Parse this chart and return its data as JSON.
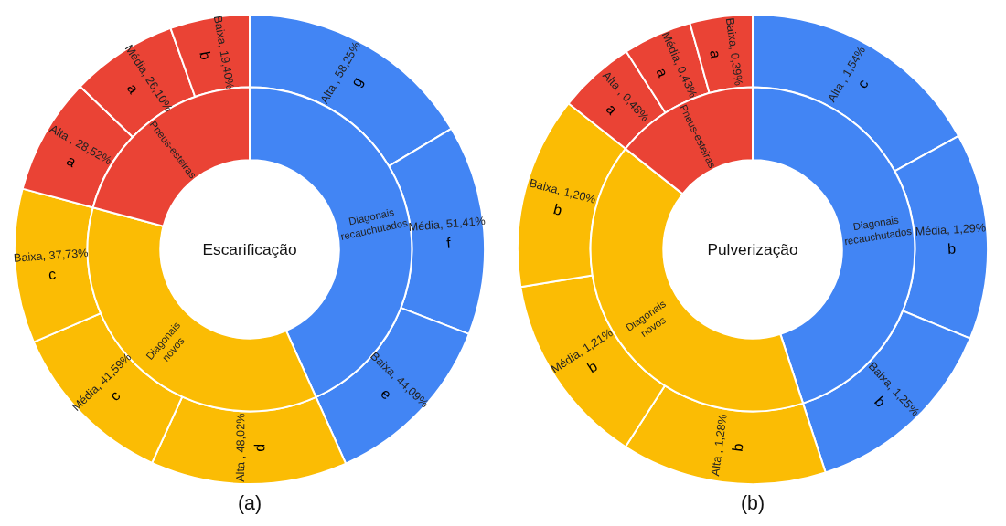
{
  "chart_data": [
    {
      "type": "donut",
      "title": "Escarificação",
      "annotations": [
        "(a)"
      ],
      "categories": [
        "Alta , 58,25%",
        "Média, 51,41%",
        "Baixa, 44,09%",
        "Alta , 48,02%",
        "Média, 41,59%",
        "Baixa, 37,73%",
        "Alta , 28,52%",
        "Média, 26,10%",
        "Baixa, 19,40%"
      ],
      "series": [
        {
          "values": [
            58.25,
            51.41,
            44.09,
            48.02,
            41.59,
            37.73,
            28.52,
            26.1,
            19.4
          ],
          "colors": [
            "#4285f4",
            "#4285f4",
            "#4285f4",
            "#fbbc04",
            "#fbbc04",
            "#fbbc04",
            "#ea4335",
            "#ea4335",
            "#ea4335"
          ],
          "value_labels": [
            "g",
            "f",
            "e",
            "d",
            "c",
            "c",
            "a",
            "a",
            "b"
          ]
        },
        {
          "value_labels": [
            "Diagonais recauchutados",
            null,
            null,
            "Diagonais novos",
            null,
            null,
            "Pneus-esteiras",
            null,
            null
          ],
          "values": [
            43.3,
            null,
            null,
            35.86,
            null,
            null,
            20.84,
            null,
            null
          ],
          "colors": [
            "#4285f4",
            "#4285f4",
            "#4285f4",
            "#fbbc04",
            "#fbbc04",
            "#fbbc04",
            "#ea4335",
            "#ea4335",
            "#ea4335"
          ]
        }
      ]
    },
    {
      "type": "donut",
      "title": "Pulverização",
      "annotations": [
        "(b)"
      ],
      "categories": [
        "Alta , 1,54%",
        "Média, 1,29%",
        "Baixa, 1,25%",
        "Alta , 1,28%",
        "Média, 1,21%",
        "Baixa, 1,20%",
        "Alta , 0,48%",
        "Média, 0,43%",
        "Baixa, 0,39%"
      ],
      "series": [
        {
          "values": [
            1.54,
            1.29,
            1.25,
            1.28,
            1.21,
            1.2,
            0.48,
            0.43,
            0.39
          ],
          "colors": [
            "#4285f4",
            "#4285f4",
            "#4285f4",
            "#fbbc04",
            "#fbbc04",
            "#fbbc04",
            "#ea4335",
            "#ea4335",
            "#ea4335"
          ],
          "value_labels": [
            "c",
            "b",
            "b",
            "b",
            "b",
            "b",
            "a",
            "a",
            "a"
          ]
        },
        {
          "value_labels": [
            "Diagonais recauchutados",
            null,
            null,
            "Diagonais novos",
            null,
            null,
            "Pneus-esteiras",
            null,
            null
          ],
          "values": [
            44.98,
            null,
            null,
            40.68,
            null,
            null,
            14.34,
            null,
            null
          ],
          "colors": [
            "#4285f4",
            "#4285f4",
            "#4285f4",
            "#fbbc04",
            "#fbbc04",
            "#fbbc04",
            "#ea4335",
            "#ea4335",
            "#ea4335"
          ]
        }
      ]
    }
  ]
}
